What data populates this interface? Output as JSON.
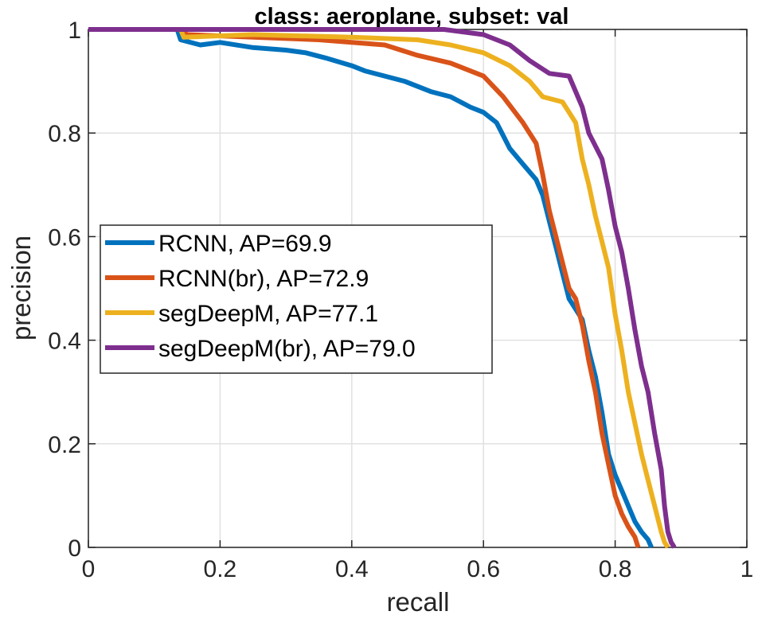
{
  "chart_data": {
    "type": "line",
    "title": "class: aeroplane, subset: val",
    "xlabel": "recall",
    "ylabel": "precision",
    "xlim": [
      0,
      1
    ],
    "ylim": [
      0,
      1
    ],
    "xticks": [
      "0",
      "0.2",
      "0.4",
      "0.6",
      "0.8",
      "1"
    ],
    "yticks": [
      "0",
      "0.2",
      "0.4",
      "0.6",
      "0.8",
      "1"
    ],
    "grid": true,
    "legend_position": "center-left",
    "series": [
      {
        "name": "RCNN, AP=69.9",
        "color": "#0072BD",
        "points": [
          [
            0.0,
            1.0
          ],
          [
            0.135,
            1.0
          ],
          [
            0.14,
            0.98
          ],
          [
            0.17,
            0.97
          ],
          [
            0.2,
            0.975
          ],
          [
            0.25,
            0.965
          ],
          [
            0.3,
            0.96
          ],
          [
            0.33,
            0.955
          ],
          [
            0.36,
            0.945
          ],
          [
            0.4,
            0.93
          ],
          [
            0.42,
            0.92
          ],
          [
            0.45,
            0.91
          ],
          [
            0.48,
            0.9
          ],
          [
            0.52,
            0.88
          ],
          [
            0.55,
            0.87
          ],
          [
            0.58,
            0.85
          ],
          [
            0.6,
            0.84
          ],
          [
            0.62,
            0.82
          ],
          [
            0.64,
            0.77
          ],
          [
            0.66,
            0.74
          ],
          [
            0.68,
            0.71
          ],
          [
            0.69,
            0.68
          ],
          [
            0.7,
            0.63
          ],
          [
            0.71,
            0.58
          ],
          [
            0.72,
            0.53
          ],
          [
            0.73,
            0.48
          ],
          [
            0.75,
            0.44
          ],
          [
            0.76,
            0.38
          ],
          [
            0.77,
            0.33
          ],
          [
            0.78,
            0.26
          ],
          [
            0.79,
            0.18
          ],
          [
            0.8,
            0.14
          ],
          [
            0.81,
            0.11
          ],
          [
            0.82,
            0.08
          ],
          [
            0.83,
            0.05
          ],
          [
            0.84,
            0.03
          ],
          [
            0.85,
            0.015
          ],
          [
            0.855,
            0.0
          ]
        ]
      },
      {
        "name": "RCNN(br), AP=72.9",
        "color": "#D95319",
        "points": [
          [
            0.0,
            1.0
          ],
          [
            0.14,
            1.0
          ],
          [
            0.15,
            0.99
          ],
          [
            0.25,
            0.985
          ],
          [
            0.35,
            0.98
          ],
          [
            0.45,
            0.97
          ],
          [
            0.5,
            0.95
          ],
          [
            0.55,
            0.935
          ],
          [
            0.6,
            0.91
          ],
          [
            0.63,
            0.87
          ],
          [
            0.66,
            0.82
          ],
          [
            0.68,
            0.78
          ],
          [
            0.69,
            0.72
          ],
          [
            0.7,
            0.65
          ],
          [
            0.71,
            0.6
          ],
          [
            0.72,
            0.55
          ],
          [
            0.73,
            0.5
          ],
          [
            0.74,
            0.48
          ],
          [
            0.75,
            0.43
          ],
          [
            0.76,
            0.36
          ],
          [
            0.77,
            0.3
          ],
          [
            0.78,
            0.22
          ],
          [
            0.79,
            0.16
          ],
          [
            0.8,
            0.1
          ],
          [
            0.81,
            0.065
          ],
          [
            0.82,
            0.04
          ],
          [
            0.83,
            0.02
          ],
          [
            0.835,
            0.0
          ]
        ]
      },
      {
        "name": "segDeepM, AP=77.1",
        "color": "#EDB120",
        "points": [
          [
            0.0,
            1.0
          ],
          [
            0.14,
            1.0
          ],
          [
            0.145,
            0.985
          ],
          [
            0.25,
            0.99
          ],
          [
            0.4,
            0.985
          ],
          [
            0.5,
            0.98
          ],
          [
            0.55,
            0.97
          ],
          [
            0.6,
            0.955
          ],
          [
            0.64,
            0.93
          ],
          [
            0.67,
            0.9
          ],
          [
            0.69,
            0.87
          ],
          [
            0.72,
            0.86
          ],
          [
            0.74,
            0.82
          ],
          [
            0.75,
            0.75
          ],
          [
            0.76,
            0.7
          ],
          [
            0.77,
            0.64
          ],
          [
            0.78,
            0.59
          ],
          [
            0.79,
            0.54
          ],
          [
            0.8,
            0.45
          ],
          [
            0.81,
            0.38
          ],
          [
            0.82,
            0.3
          ],
          [
            0.83,
            0.24
          ],
          [
            0.84,
            0.18
          ],
          [
            0.85,
            0.13
          ],
          [
            0.86,
            0.08
          ],
          [
            0.87,
            0.03
          ],
          [
            0.875,
            0.01
          ],
          [
            0.88,
            0.0
          ]
        ]
      },
      {
        "name": "segDeepM(br), AP=79.0",
        "color": "#7E2F8E",
        "points": [
          [
            0.0,
            1.0
          ],
          [
            0.54,
            1.0
          ],
          [
            0.6,
            0.99
          ],
          [
            0.64,
            0.97
          ],
          [
            0.67,
            0.94
          ],
          [
            0.7,
            0.915
          ],
          [
            0.73,
            0.91
          ],
          [
            0.75,
            0.85
          ],
          [
            0.76,
            0.8
          ],
          [
            0.78,
            0.75
          ],
          [
            0.79,
            0.69
          ],
          [
            0.8,
            0.62
          ],
          [
            0.81,
            0.57
          ],
          [
            0.82,
            0.5
          ],
          [
            0.83,
            0.42
          ],
          [
            0.84,
            0.35
          ],
          [
            0.85,
            0.3
          ],
          [
            0.86,
            0.22
          ],
          [
            0.87,
            0.15
          ],
          [
            0.875,
            0.08
          ],
          [
            0.88,
            0.03
          ],
          [
            0.885,
            0.01
          ],
          [
            0.89,
            0.0
          ]
        ]
      }
    ]
  }
}
